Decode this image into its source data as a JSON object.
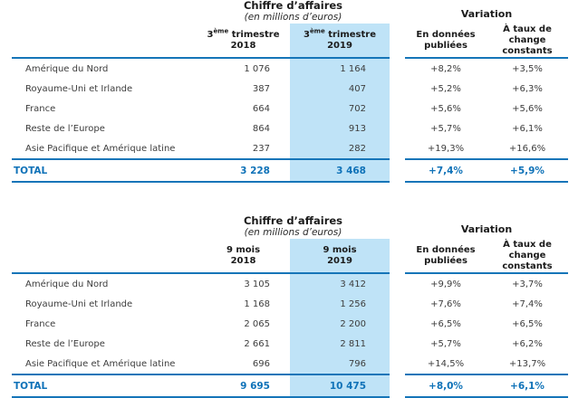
{
  "colors": {
    "accent_line_blue": "#1575B8",
    "highlight_column_blue": "#BFE3F7",
    "total_text_blue": "#0F72B8",
    "header_text": "#1B1B1B",
    "body_text": "#3D3D3D",
    "background": "#FFFFFF"
  },
  "tables": [
    {
      "name": "revenue-third-quarter",
      "title": "Chiffre d’affaires",
      "subtitle": "(en millions d’euros)",
      "variation_title": "Variation",
      "period_headers": [
        {
          "line1_pre": "3",
          "line1_sup": "ème",
          "line1_post": " trimestre",
          "line2": "2018"
        },
        {
          "line1_pre": "3",
          "line1_sup": "ème",
          "line1_post": " trimestre",
          "line2": "2019"
        }
      ],
      "variation_subheaders": [
        {
          "lines": [
            "En données",
            "publiées"
          ]
        },
        {
          "lines": [
            "À taux de",
            "change",
            "constants"
          ]
        }
      ],
      "rows": [
        {
          "label": "Amérique du Nord",
          "y2018": "1 076",
          "y2019": "1 164",
          "var_published": "+8,2%",
          "var_constant": "+3,5%"
        },
        {
          "label": "Royaume-Uni et Irlande",
          "y2018": "387",
          "y2019": "407",
          "var_published": "+5,2%",
          "var_constant": "+6,3%"
        },
        {
          "label": "France",
          "y2018": "664",
          "y2019": "702",
          "var_published": "+5,6%",
          "var_constant": "+5,6%"
        },
        {
          "label": "Reste de l’Europe",
          "y2018": "864",
          "y2019": "913",
          "var_published": "+5,7%",
          "var_constant": "+6,1%"
        },
        {
          "label": "Asie Pacifique et Amérique latine",
          "y2018": "237",
          "y2019": "282",
          "var_published": "+19,3%",
          "var_constant": "+16,6%"
        }
      ],
      "total": {
        "label": "TOTAL",
        "y2018": "3 228",
        "y2019": "3 468",
        "var_published": "+7,4%",
        "var_constant": "+5,9%"
      }
    },
    {
      "name": "revenue-nine-months",
      "title": "Chiffre d’affaires",
      "subtitle": "(en millions d’euros)",
      "variation_title": "Variation",
      "period_headers": [
        {
          "line1_pre": "9 mois",
          "line1_sup": "",
          "line1_post": "",
          "line2": "2018"
        },
        {
          "line1_pre": "9 mois",
          "line1_sup": "",
          "line1_post": "",
          "line2": "2019"
        }
      ],
      "variation_subheaders": [
        {
          "lines": [
            "En données",
            "publiées"
          ]
        },
        {
          "lines": [
            "À taux de",
            "change",
            "constants"
          ]
        }
      ],
      "rows": [
        {
          "label": "Amérique du Nord",
          "y2018": "3 105",
          "y2019": "3 412",
          "var_published": "+9,9%",
          "var_constant": "+3,7%"
        },
        {
          "label": "Royaume-Uni et Irlande",
          "y2018": "1 168",
          "y2019": "1 256",
          "var_published": "+7,6%",
          "var_constant": "+7,4%"
        },
        {
          "label": "France",
          "y2018": "2 065",
          "y2019": "2 200",
          "var_published": "+6,5%",
          "var_constant": "+6,5%"
        },
        {
          "label": "Reste de l’Europe",
          "y2018": "2 661",
          "y2019": "2 811",
          "var_published": "+5,7%",
          "var_constant": "+6,2%"
        },
        {
          "label": "Asie Pacifique et Amérique latine",
          "y2018": "696",
          "y2019": "796",
          "var_published": "+14,5%",
          "var_constant": "+13,7%"
        }
      ],
      "total": {
        "label": "TOTAL",
        "y2018": "9 695",
        "y2019": "10 475",
        "var_published": "+8,0%",
        "var_constant": "+6,1%"
      }
    }
  ]
}
